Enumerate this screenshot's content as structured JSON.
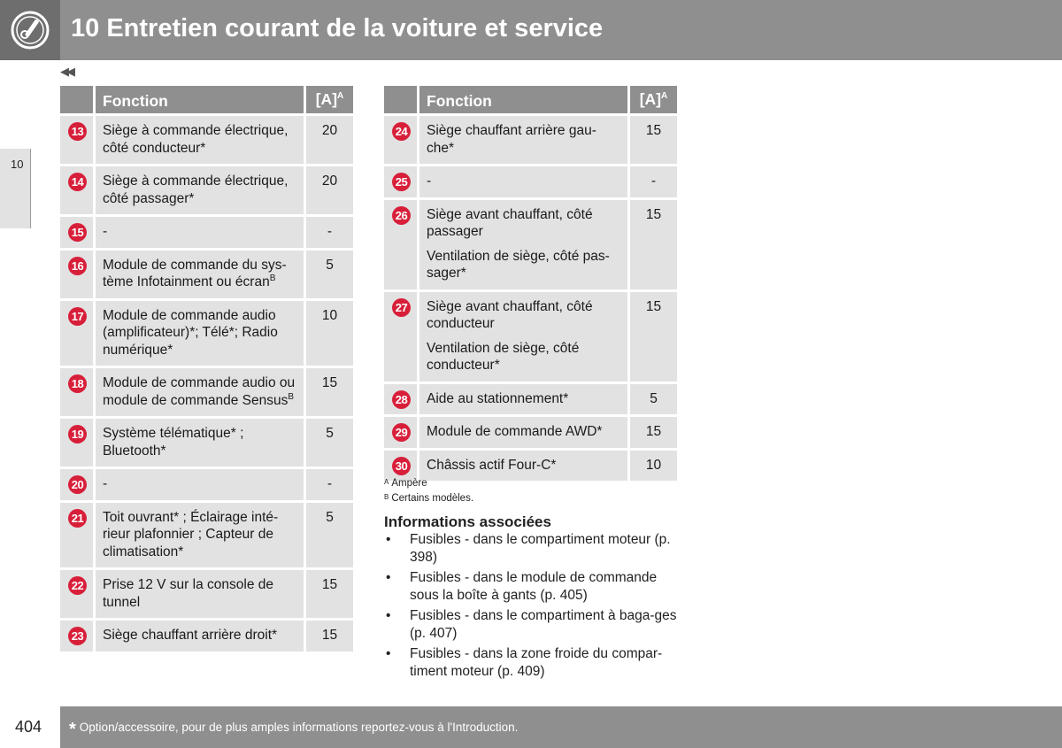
{
  "header": {
    "title": "10 Entretien courant de la voiture et service",
    "icon": "wrench-gear-icon"
  },
  "prev_marker": "◀◀",
  "side_tab": {
    "label": "10"
  },
  "table_left": {
    "headers": {
      "function": "Fonction",
      "amp": "[A]",
      "amp_sup": "A"
    },
    "rows": [
      {
        "num": "13",
        "lines": [
          "Siège à commande électrique, côté conducteur*"
        ],
        "amp": "20"
      },
      {
        "num": "14",
        "lines": [
          "Siège à commande électrique, côté passager*"
        ],
        "amp": "20"
      },
      {
        "num": "15",
        "lines": [
          "-"
        ],
        "amp": "-"
      },
      {
        "num": "16",
        "lines": [
          "Module de commande du sys-tème Infotainment ou écran"
        ],
        "sup": "B",
        "amp": "5"
      },
      {
        "num": "17",
        "lines": [
          "Module de commande audio (amplificateur)*; Télé*; Radio numérique*"
        ],
        "amp": "10"
      },
      {
        "num": "18",
        "lines": [
          "Module de commande audio ou module de commande Sensus"
        ],
        "sup": "B",
        "amp": "15"
      },
      {
        "num": "19",
        "lines": [
          "Système télématique* ; Bluetooth*"
        ],
        "amp": "5"
      },
      {
        "num": "20",
        "lines": [
          "-"
        ],
        "amp": "-"
      },
      {
        "num": "21",
        "lines": [
          "Toit ouvrant* ; Éclairage inté-rieur plafonnier ; Capteur de climatisation*"
        ],
        "amp": "5"
      },
      {
        "num": "22",
        "lines": [
          "Prise 12 V sur la console de tunnel"
        ],
        "amp": "15"
      },
      {
        "num": "23",
        "lines": [
          "Siège chauffant arrière droit*"
        ],
        "amp": "15"
      }
    ]
  },
  "table_right": {
    "headers": {
      "function": "Fonction",
      "amp": "[A]",
      "amp_sup": "A"
    },
    "rows": [
      {
        "num": "24",
        "lines": [
          "Siège chauffant arrière gau-che*"
        ],
        "amp": "15"
      },
      {
        "num": "25",
        "lines": [
          "-"
        ],
        "amp": "-"
      },
      {
        "num": "26",
        "lines": [
          "Siège avant chauffant, côté passager",
          "Ventilation de siège, côté pas-sager*"
        ],
        "amp": "15"
      },
      {
        "num": "27",
        "lines": [
          "Siège avant chauffant, côté conducteur",
          "Ventilation de siège, côté conducteur*"
        ],
        "amp": "15"
      },
      {
        "num": "28",
        "lines": [
          "Aide au stationnement*"
        ],
        "amp": "5"
      },
      {
        "num": "29",
        "lines": [
          "Module de commande AWD*"
        ],
        "amp": "15"
      },
      {
        "num": "30",
        "lines": [
          "Châssis actif Four-C*"
        ],
        "amp": "10"
      }
    ]
  },
  "notes": [
    {
      "mark": "A",
      "text": "Ampère"
    },
    {
      "mark": "B",
      "text": "Certains modèles."
    }
  ],
  "related": {
    "title": "Informations associées",
    "bullet": "•",
    "items": [
      "Fusibles - dans le compartiment moteur (p. 398)",
      "Fusibles - dans le module de commande sous la boîte à gants (p. 405)",
      "Fusibles - dans le compartiment à baga-ges (p. 407)",
      "Fusibles - dans la zone froide du compar-timent moteur (p. 409)"
    ]
  },
  "footer": {
    "star": "*",
    "note": "Option/accessoire, pour de plus amples informations reportez-vous à l'Introduction.",
    "page_number": "404"
  },
  "colors": {
    "header_bg": "#8f8f8f",
    "header_icon_bg": "#6e6e6e",
    "row_bg": "#e2e2e2",
    "badge": "#d81f3a"
  }
}
